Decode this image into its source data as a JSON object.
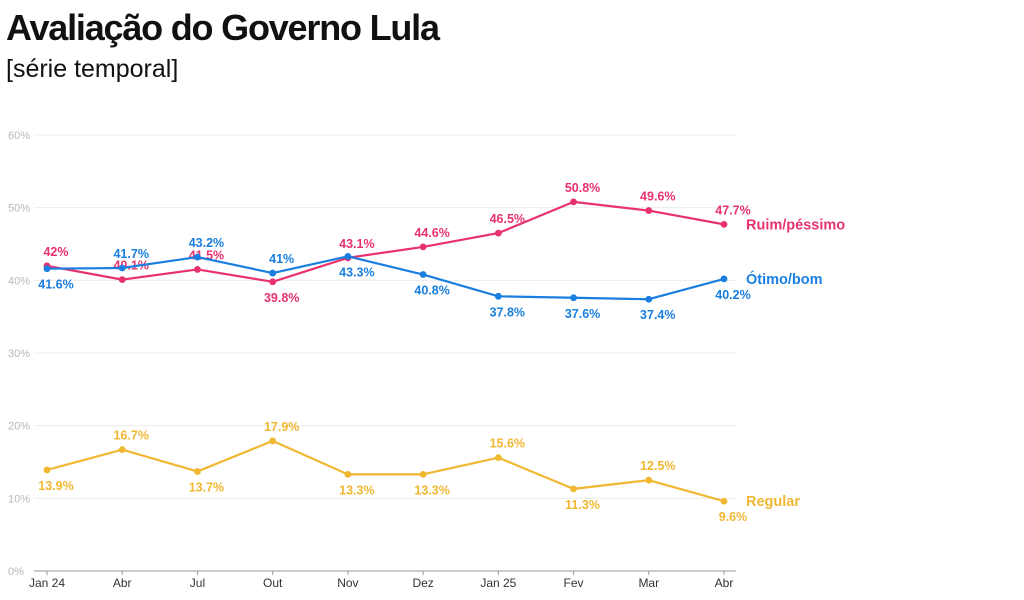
{
  "title": "Avaliação do Governo Lula",
  "subtitle": "[série temporal]",
  "chart_data": {
    "type": "line",
    "categories": [
      "Jan 24",
      "Abr",
      "Jul",
      "Out",
      "Nov",
      "Dez",
      "Jan 25",
      "Fev",
      "Mar",
      "Abr"
    ],
    "yticks": [
      "0%",
      "10%",
      "20%",
      "30%",
      "40%",
      "50%",
      "60%"
    ],
    "ylim": [
      0,
      60
    ],
    "grid": true,
    "series": [
      {
        "name": "Ruim/péssimo",
        "color": "#e8326e",
        "values": [
          42,
          40.1,
          41.5,
          39.8,
          43.1,
          44.6,
          46.5,
          50.8,
          49.6,
          47.7
        ],
        "labels": [
          "42%",
          "40.1%",
          "41.5%",
          "39.8%",
          "43.1%",
          "44.6%",
          "46.5%",
          "50.8%",
          "49.6%",
          "47.7%"
        ]
      },
      {
        "name": "Ótimo/bom",
        "color": "#1a7fe0",
        "values": [
          41.6,
          41.7,
          43.2,
          41,
          43.3,
          40.8,
          37.8,
          37.6,
          37.4,
          40.2
        ],
        "labels": [
          "41.6%",
          "41.7%",
          "43.2%",
          "41%",
          "43.3%",
          "40.8%",
          "37.8%",
          "37.6%",
          "37.4%",
          "40.2%"
        ]
      },
      {
        "name": "Regular",
        "color": "#f0b732",
        "values": [
          13.9,
          16.7,
          13.7,
          17.9,
          13.3,
          13.3,
          15.6,
          11.3,
          12.5,
          9.6
        ],
        "labels": [
          "13.9%",
          "16.7%",
          "13.7%",
          "17.9%",
          "13.3%",
          "13.3%",
          "15.6%",
          "11.3%",
          "12.5%",
          "9.6%"
        ]
      }
    ]
  }
}
